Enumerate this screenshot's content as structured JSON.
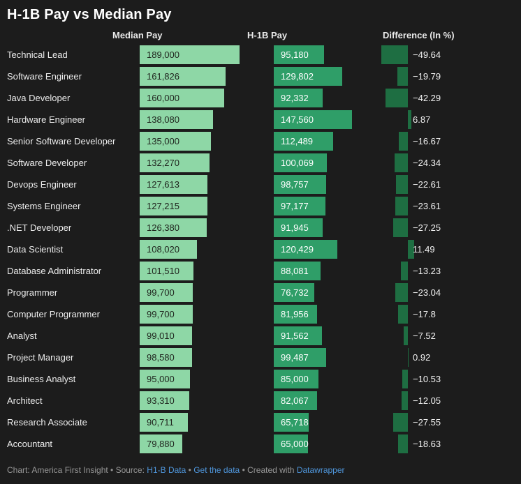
{
  "title": "H-1B Pay vs Median Pay",
  "colors": {
    "background": "#1c1c1c",
    "median_bar": "#8ed7a6",
    "h1b_bar": "#2f9e68",
    "diff_bar": "#1e6e42",
    "link": "#4e95da"
  },
  "chart_data": {
    "type": "bar",
    "orientation": "horizontal",
    "title": "H-1B Pay vs Median Pay",
    "column_headers": [
      "Median Pay",
      "H-1B Pay",
      "Difference (In %)"
    ],
    "categories": [
      "Technical Lead",
      "Software Engineer",
      "Java Developer",
      "Hardware Engineer",
      "Senior Software Developer",
      "Software Developer",
      "Devops Engineer",
      "Systems Engineer",
      ".NET Developer",
      "Data Scientist",
      "Database Administrator",
      "Programmer",
      "Computer Programmer",
      "Analyst",
      "Project Manager",
      "Business Analyst",
      "Architect",
      "Research Associate",
      "Accountant"
    ],
    "series": [
      {
        "name": "Median Pay",
        "values": [
          189000,
          161826,
          160000,
          138080,
          135000,
          132270,
          127613,
          127215,
          126380,
          108020,
          101510,
          99700,
          99700,
          99010,
          98580,
          95000,
          93310,
          90711,
          79880
        ]
      },
      {
        "name": "H-1B Pay",
        "values": [
          95180,
          129802,
          92332,
          147560,
          112489,
          100069,
          98757,
          97177,
          91945,
          120429,
          88081,
          76732,
          81956,
          91562,
          99487,
          85000,
          82067,
          65718,
          65000
        ]
      },
      {
        "name": "Difference (In %)",
        "values": [
          -49.64,
          -19.79,
          -42.29,
          6.87,
          -16.67,
          -24.34,
          -22.61,
          -23.61,
          -27.25,
          11.49,
          -13.23,
          -23.04,
          -17.8,
          -7.52,
          0.92,
          -10.53,
          -12.05,
          -27.55,
          -18.63
        ]
      }
    ],
    "pay_axis_range": [
      0,
      189000
    ],
    "diff_axis_range": [
      -49.64,
      11.49
    ],
    "grid": false,
    "legend_position": "column-headers"
  },
  "footer": {
    "segments": [
      {
        "text": "Chart: America First Insight • Source: ",
        "link": false
      },
      {
        "text": "H1-B Data",
        "link": true,
        "name": "footer-link-h1b-data"
      },
      {
        "text": " • ",
        "link": false
      },
      {
        "text": "Get the data",
        "link": true,
        "name": "footer-link-get-the-data"
      },
      {
        "text": " • Created with ",
        "link": false
      },
      {
        "text": "Datawrapper",
        "link": true,
        "name": "footer-link-datawrapper"
      }
    ]
  }
}
